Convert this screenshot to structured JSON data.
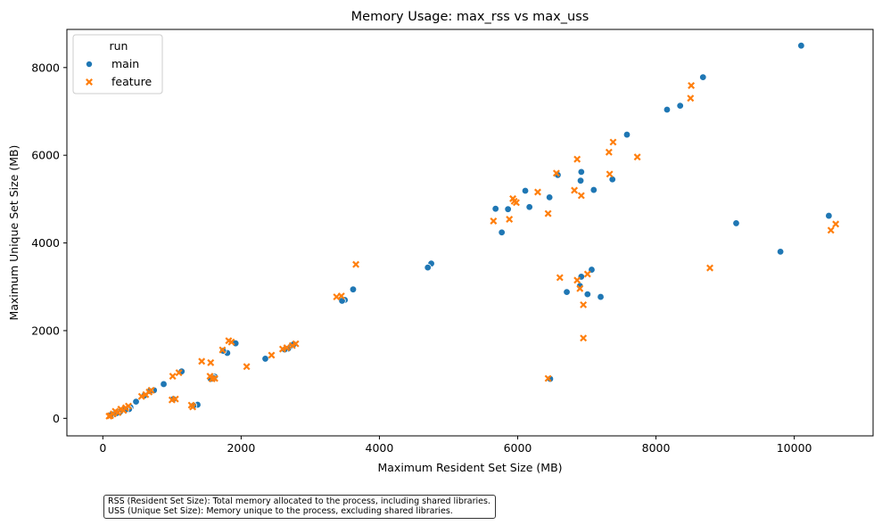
{
  "chart_data": {
    "type": "scatter",
    "title": "Memory Usage: max_rss vs max_uss",
    "xlabel": "Maximum Resident Set Size (MB)",
    "ylabel": "Maximum Unique Set Size (MB)",
    "xlim": [
      -520,
      11140
    ],
    "ylim": [
      -400,
      8870
    ],
    "xticks": [
      0,
      2000,
      4000,
      6000,
      8000,
      10000
    ],
    "yticks": [
      0,
      2000,
      4000,
      6000,
      8000
    ],
    "grid": false,
    "legend": {
      "title": "run",
      "position": "upper-left"
    },
    "series": [
      {
        "name": "main",
        "marker": "circle",
        "color": "#1f77b4",
        "points": [
          [
            10100,
            8500
          ],
          [
            8680,
            7780
          ],
          [
            8350,
            7130
          ],
          [
            8160,
            7040
          ],
          [
            7580,
            6470
          ],
          [
            6580,
            5550
          ],
          [
            6920,
            5620
          ],
          [
            6910,
            5420
          ],
          [
            7370,
            5450
          ],
          [
            7100,
            5210
          ],
          [
            6110,
            5190
          ],
          [
            6460,
            5040
          ],
          [
            6170,
            4820
          ],
          [
            5680,
            4780
          ],
          [
            5860,
            4770
          ],
          [
            5770,
            4240
          ],
          [
            9160,
            4450
          ],
          [
            10500,
            4620
          ],
          [
            9800,
            3800
          ],
          [
            7070,
            3390
          ],
          [
            6920,
            3230
          ],
          [
            6900,
            3020
          ],
          [
            6710,
            2880
          ],
          [
            7010,
            2830
          ],
          [
            7200,
            2770
          ],
          [
            4750,
            3530
          ],
          [
            4700,
            3440
          ],
          [
            3620,
            2940
          ],
          [
            3500,
            2700
          ],
          [
            3460,
            2680
          ],
          [
            6470,
            900
          ],
          [
            2350,
            1360
          ],
          [
            1920,
            1710
          ],
          [
            1800,
            1490
          ],
          [
            1740,
            1540
          ],
          [
            2760,
            1690
          ],
          [
            2700,
            1620
          ],
          [
            2680,
            1590
          ],
          [
            2630,
            1570
          ],
          [
            1620,
            950
          ],
          [
            1600,
            920
          ],
          [
            1560,
            900
          ],
          [
            1140,
            1070
          ],
          [
            880,
            780
          ],
          [
            740,
            640
          ],
          [
            680,
            620
          ],
          [
            600,
            520
          ],
          [
            480,
            380
          ],
          [
            400,
            250
          ],
          [
            380,
            210
          ],
          [
            330,
            200
          ],
          [
            1370,
            310
          ],
          [
            1310,
            290
          ],
          [
            1020,
            440
          ],
          [
            250,
            150
          ],
          [
            200,
            120
          ],
          [
            150,
            90
          ],
          [
            110,
            70
          ]
        ]
      },
      {
        "name": "feature",
        "marker": "x",
        "color": "#ff7f0e",
        "points": [
          [
            8510,
            7590
          ],
          [
            8500,
            7300
          ],
          [
            7380,
            6300
          ],
          [
            7320,
            6070
          ],
          [
            7730,
            5960
          ],
          [
            6860,
            5910
          ],
          [
            6560,
            5590
          ],
          [
            7330,
            5570
          ],
          [
            6290,
            5160
          ],
          [
            6820,
            5200
          ],
          [
            6920,
            5080
          ],
          [
            5930,
            5010
          ],
          [
            5980,
            4920
          ],
          [
            5950,
            4950
          ],
          [
            5880,
            4540
          ],
          [
            5650,
            4500
          ],
          [
            6440,
            4670
          ],
          [
            10530,
            4290
          ],
          [
            10600,
            4430
          ],
          [
            8780,
            3430
          ],
          [
            3660,
            3510
          ],
          [
            3450,
            2790
          ],
          [
            3380,
            2770
          ],
          [
            6610,
            3210
          ],
          [
            7010,
            3290
          ],
          [
            6860,
            3150
          ],
          [
            6900,
            2960
          ],
          [
            6950,
            2590
          ],
          [
            6950,
            1830
          ],
          [
            6440,
            910
          ],
          [
            1820,
            1770
          ],
          [
            1860,
            1740
          ],
          [
            1730,
            1560
          ],
          [
            2790,
            1700
          ],
          [
            2740,
            1660
          ],
          [
            2660,
            1610
          ],
          [
            2600,
            1580
          ],
          [
            2440,
            1440
          ],
          [
            2080,
            1180
          ],
          [
            1560,
            1270
          ],
          [
            1430,
            1300
          ],
          [
            1550,
            960
          ],
          [
            1580,
            900
          ],
          [
            1620,
            910
          ],
          [
            1100,
            1040
          ],
          [
            1010,
            960
          ],
          [
            700,
            640
          ],
          [
            670,
            600
          ],
          [
            620,
            540
          ],
          [
            560,
            500
          ],
          [
            1050,
            440
          ],
          [
            1000,
            420
          ],
          [
            1300,
            260
          ],
          [
            1280,
            300
          ],
          [
            370,
            280
          ],
          [
            330,
            240
          ],
          [
            300,
            180
          ],
          [
            260,
            210
          ],
          [
            220,
            130
          ],
          [
            180,
            160
          ],
          [
            150,
            100
          ],
          [
            110,
            60
          ],
          [
            90,
            50
          ]
        ]
      }
    ]
  },
  "footnote": {
    "line1": "RSS (Resident Set Size): Total memory allocated to the process, including shared libraries.",
    "line2": "USS (Unique Set Size): Memory unique to the process, excluding shared libraries."
  }
}
